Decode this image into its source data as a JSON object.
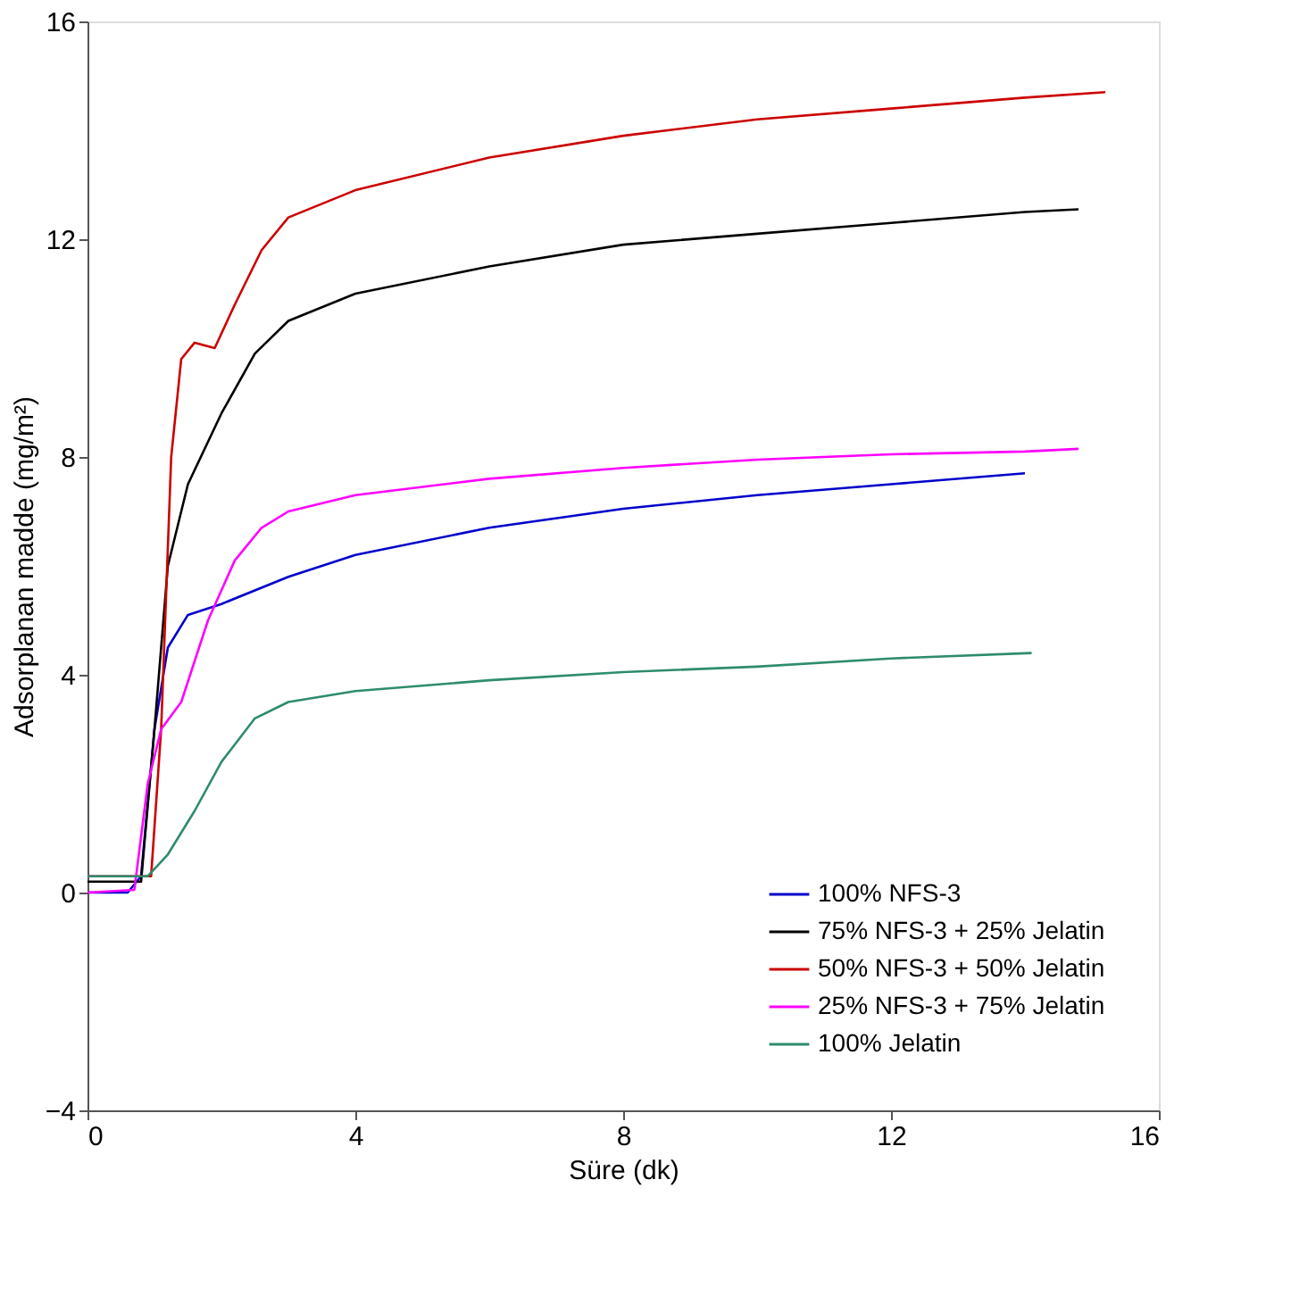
{
  "chart_data": {
    "type": "line",
    "xlabel": "Süre (dk)",
    "ylabel": "Adsorplanan madde (mg/m²)",
    "xlim": [
      0,
      16
    ],
    "xticks": [
      0,
      4,
      8,
      12,
      16
    ],
    "ylim": [
      -4,
      16
    ],
    "yticks": [
      -4,
      0,
      4,
      8,
      12,
      16
    ],
    "grid": false,
    "legend": "bottom right",
    "marker": "none",
    "line_style": "solid",
    "series": [
      {
        "name": "100% NFS-3",
        "color": "#0000cc",
        "x": [
          0,
          0.6,
          0.8,
          1.0,
          1.2,
          1.5,
          2,
          3,
          4,
          6,
          8,
          10,
          12,
          14
        ],
        "values": [
          0.0,
          0.0,
          0.3,
          3,
          4.5,
          5.1,
          5.3,
          5.8,
          6.2,
          6.7,
          7.05,
          7.3,
          7.5,
          7.7
        ]
      },
      {
        "name": "75% NFS-3 + 25% Jelatin",
        "color": "#000000",
        "x": [
          0,
          0.8,
          1.0,
          1.2,
          1.5,
          2,
          2.5,
          3,
          4,
          6,
          8,
          10,
          12,
          14,
          14.8
        ],
        "values": [
          0.2,
          0.2,
          3,
          6,
          7.5,
          8.8,
          9.9,
          10.5,
          11.0,
          11.5,
          11.9,
          12.1,
          12.3,
          12.5,
          12.55
        ]
      },
      {
        "name": "50% NFS-3 + 50% Jelatin",
        "color": "#cc0000",
        "x": [
          0,
          0.95,
          1.1,
          1.25,
          1.4,
          1.6,
          1.9,
          2.2,
          2.6,
          3,
          4,
          6,
          8,
          10,
          12,
          14,
          15.2
        ],
        "values": [
          0.3,
          0.3,
          3,
          8,
          9.8,
          10.1,
          10.0,
          10.8,
          11.8,
          12.4,
          12.9,
          13.5,
          13.9,
          14.2,
          14.4,
          14.6,
          14.7
        ]
      },
      {
        "name": "25% NFS-3 + 75% Jelatin",
        "color": "#ff00ff",
        "x": [
          0,
          0.7,
          0.9,
          1.1,
          1.4,
          1.8,
          2.2,
          2.6,
          3,
          4,
          6,
          8,
          10,
          12,
          14,
          14.8
        ],
        "values": [
          0.0,
          0.05,
          2,
          3.0,
          3.5,
          5,
          6.1,
          6.7,
          7.0,
          7.3,
          7.6,
          7.8,
          7.95,
          8.05,
          8.1,
          8.15
        ]
      },
      {
        "name": "100% Jelatin",
        "color": "#2e8b6e",
        "x": [
          0,
          0.9,
          1.2,
          1.6,
          2,
          2.5,
          3,
          4,
          6,
          8,
          10,
          12,
          14.1
        ],
        "values": [
          0.3,
          0.3,
          0.7,
          1.5,
          2.4,
          3.2,
          3.5,
          3.7,
          3.9,
          4.05,
          4.15,
          4.3,
          4.4
        ]
      }
    ]
  }
}
